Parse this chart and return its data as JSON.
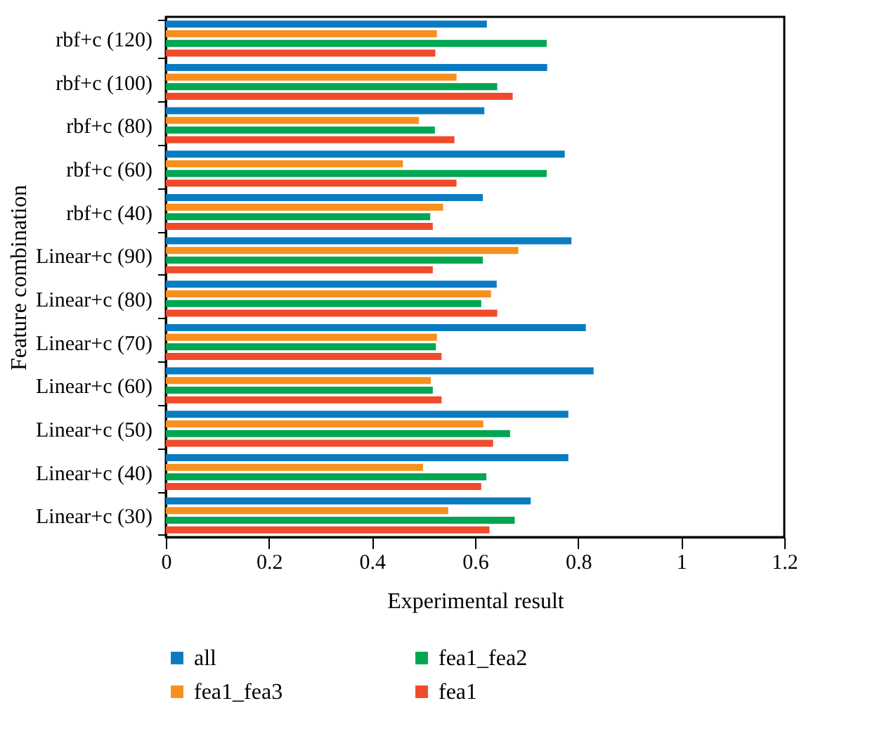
{
  "chart_data": {
    "type": "bar",
    "orientation": "horizontal",
    "xlabel": "Experimental result",
    "ylabel": "Feature combination",
    "categories": [
      "rbf+c (120)",
      "rbf+c (100)",
      "rbf+c (80)",
      "rbf+c (60)",
      "rbf+c (40)",
      "Linear+c (90)",
      "Linear+c (80)",
      "Linear+c (70)",
      "Linear+c (60)",
      "Linear+c (50)",
      "Linear+c (40)",
      "Linear+c (30)"
    ],
    "series": [
      {
        "name": "all",
        "color": "#0a7bc1",
        "values": [
          0.623,
          0.74,
          0.618,
          0.774,
          0.615,
          0.787,
          0.642,
          0.815,
          0.83,
          0.781,
          0.781,
          0.708
        ]
      },
      {
        "name": "fea1_fea3",
        "color": "#f7901e",
        "values": [
          0.526,
          0.564,
          0.491,
          0.46,
          0.538,
          0.684,
          0.631,
          0.526,
          0.514,
          0.616,
          0.499,
          0.548
        ]
      },
      {
        "name": "fea1_fea2",
        "color": "#00a651",
        "values": [
          0.739,
          0.643,
          0.522,
          0.739,
          0.513,
          0.615,
          0.612,
          0.524,
          0.518,
          0.668,
          0.622,
          0.677
        ]
      },
      {
        "name": "fea1",
        "color": "#ef4b2b",
        "values": [
          0.523,
          0.673,
          0.56,
          0.564,
          0.518,
          0.518,
          0.643,
          0.535,
          0.535,
          0.635,
          0.612,
          0.628
        ]
      }
    ],
    "xlim": [
      0,
      1.2
    ],
    "xticks": [
      0,
      0.2,
      0.4,
      0.6,
      0.8,
      1,
      1.2
    ],
    "grid": false,
    "legend": "bottom"
  }
}
